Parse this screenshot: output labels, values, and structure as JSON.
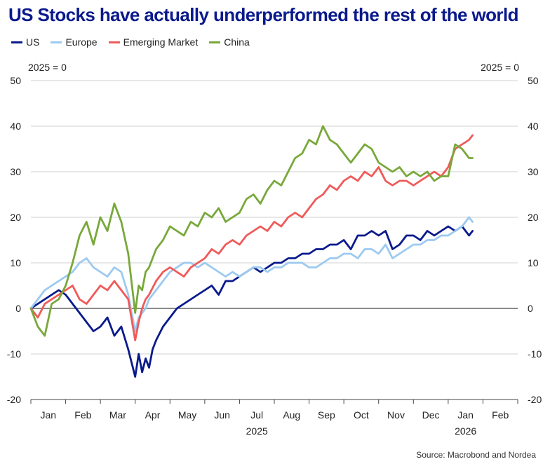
{
  "title": "US Stocks have actually underperformed the rest of the world",
  "source": "Source: Macrobond and Nordea",
  "chart_data": {
    "type": "line",
    "title": "US Stocks have actually underperformed the rest of the world",
    "left_axis_note": "2025 = 0",
    "right_axis_note": "2025 = 0",
    "ylim": [
      -20,
      50
    ],
    "yticks": [
      -20,
      -10,
      0,
      10,
      20,
      30,
      40,
      50
    ],
    "x_unit": "months since 2025-01-01",
    "xlim": [
      0,
      14
    ],
    "months": [
      "Jan",
      "Feb",
      "Mar",
      "Apr",
      "May",
      "Jun",
      "Jul",
      "Aug",
      "Sep",
      "Oct",
      "Nov",
      "Dec",
      "Jan",
      "Feb"
    ],
    "years": [
      {
        "label": "2025",
        "month_index": 6
      },
      {
        "label": "2026",
        "month_index": 12
      }
    ],
    "grid": "horizontal",
    "legend": "top-left",
    "series": [
      {
        "name": "US",
        "color": "#0a1a8c",
        "x": [
          0,
          0.2,
          0.4,
          0.6,
          0.8,
          1.0,
          1.2,
          1.4,
          1.6,
          1.8,
          2.0,
          2.2,
          2.4,
          2.6,
          2.8,
          3.0,
          3.1,
          3.2,
          3.3,
          3.4,
          3.5,
          3.6,
          3.8,
          4.0,
          4.2,
          4.4,
          4.6,
          4.8,
          5.0,
          5.2,
          5.4,
          5.6,
          5.8,
          6.0,
          6.2,
          6.4,
          6.6,
          6.8,
          7.0,
          7.2,
          7.4,
          7.6,
          7.8,
          8.0,
          8.2,
          8.4,
          8.6,
          8.8,
          9.0,
          9.2,
          9.4,
          9.6,
          9.8,
          10.0,
          10.2,
          10.4,
          10.6,
          10.8,
          11.0,
          11.2,
          11.4,
          11.6,
          11.8,
          12.0,
          12.2,
          12.4,
          12.6,
          12.7
        ],
        "y": [
          0,
          1,
          2,
          3,
          4,
          3,
          1,
          -1,
          -3,
          -5,
          -4,
          -2,
          -6,
          -4,
          -9,
          -15,
          -10,
          -14,
          -11,
          -13,
          -9,
          -7,
          -4,
          -2,
          0,
          1,
          2,
          3,
          4,
          5,
          3,
          6,
          6,
          7,
          8,
          9,
          8,
          9,
          10,
          10,
          11,
          11,
          12,
          12,
          13,
          13,
          14,
          14,
          15,
          13,
          16,
          16,
          17,
          16,
          17,
          13,
          14,
          16,
          16,
          15,
          17,
          16,
          17,
          18,
          17,
          18,
          16,
          17
        ]
      },
      {
        "name": "Europe",
        "color": "#9ccaf0",
        "x": [
          0,
          0.2,
          0.4,
          0.6,
          0.8,
          1.0,
          1.2,
          1.4,
          1.6,
          1.8,
          2.0,
          2.2,
          2.4,
          2.6,
          2.8,
          3.0,
          3.1,
          3.2,
          3.3,
          3.4,
          3.6,
          3.8,
          4.0,
          4.2,
          4.4,
          4.6,
          4.8,
          5.0,
          5.2,
          5.4,
          5.6,
          5.8,
          6.0,
          6.2,
          6.4,
          6.6,
          6.8,
          7.0,
          7.2,
          7.4,
          7.6,
          7.8,
          8.0,
          8.2,
          8.4,
          8.6,
          8.8,
          9.0,
          9.2,
          9.4,
          9.6,
          9.8,
          10.0,
          10.2,
          10.4,
          10.6,
          10.8,
          11.0,
          11.2,
          11.4,
          11.6,
          11.8,
          12.0,
          12.2,
          12.4,
          12.6,
          12.7
        ],
        "y": [
          0,
          2,
          4,
          5,
          6,
          7,
          8,
          10,
          11,
          9,
          8,
          7,
          9,
          8,
          3,
          -5,
          -2,
          -1,
          0,
          2,
          4,
          6,
          8,
          9,
          10,
          10,
          9,
          10,
          9,
          8,
          7,
          8,
          7,
          8,
          9,
          9,
          8,
          9,
          9,
          10,
          10,
          10,
          9,
          9,
          10,
          11,
          11,
          12,
          12,
          11,
          13,
          13,
          12,
          14,
          11,
          12,
          13,
          14,
          14,
          15,
          15,
          16,
          16,
          17,
          18,
          20,
          19
        ]
      },
      {
        "name": "Emerging Market",
        "color": "#f05a5a",
        "x": [
          0,
          0.2,
          0.4,
          0.6,
          0.8,
          1.0,
          1.2,
          1.4,
          1.6,
          1.8,
          2.0,
          2.2,
          2.4,
          2.6,
          2.8,
          3.0,
          3.1,
          3.2,
          3.3,
          3.4,
          3.6,
          3.8,
          4.0,
          4.2,
          4.4,
          4.6,
          4.8,
          5.0,
          5.2,
          5.4,
          5.6,
          5.8,
          6.0,
          6.2,
          6.4,
          6.6,
          6.8,
          7.0,
          7.2,
          7.4,
          7.6,
          7.8,
          8.0,
          8.2,
          8.4,
          8.6,
          8.8,
          9.0,
          9.2,
          9.4,
          9.6,
          9.8,
          10.0,
          10.2,
          10.4,
          10.6,
          10.8,
          11.0,
          11.2,
          11.4,
          11.6,
          11.8,
          12.0,
          12.2,
          12.4,
          12.6,
          12.7
        ],
        "y": [
          0,
          -2,
          1,
          2,
          3,
          4,
          5,
          2,
          1,
          3,
          5,
          4,
          6,
          4,
          2,
          -7,
          -3,
          0,
          2,
          3,
          6,
          8,
          9,
          8,
          7,
          9,
          10,
          11,
          13,
          12,
          14,
          15,
          14,
          16,
          17,
          18,
          17,
          19,
          18,
          20,
          21,
          20,
          22,
          24,
          25,
          27,
          26,
          28,
          29,
          28,
          30,
          29,
          31,
          28,
          27,
          28,
          28,
          27,
          28,
          29,
          30,
          29,
          31,
          35,
          36,
          37,
          38
        ]
      },
      {
        "name": "China",
        "color": "#78a83a",
        "x": [
          0,
          0.2,
          0.4,
          0.6,
          0.8,
          1.0,
          1.2,
          1.4,
          1.6,
          1.8,
          2.0,
          2.2,
          2.4,
          2.6,
          2.8,
          3.0,
          3.1,
          3.2,
          3.3,
          3.4,
          3.6,
          3.8,
          4.0,
          4.2,
          4.4,
          4.6,
          4.8,
          5.0,
          5.2,
          5.4,
          5.6,
          5.8,
          6.0,
          6.2,
          6.4,
          6.6,
          6.8,
          7.0,
          7.2,
          7.4,
          7.6,
          7.8,
          8.0,
          8.2,
          8.4,
          8.6,
          8.8,
          9.0,
          9.2,
          9.4,
          9.6,
          9.8,
          10.0,
          10.2,
          10.4,
          10.6,
          10.8,
          11.0,
          11.2,
          11.4,
          11.6,
          11.8,
          12.0,
          12.2,
          12.4,
          12.6,
          12.7
        ],
        "y": [
          0,
          -4,
          -6,
          1,
          2,
          5,
          10,
          16,
          19,
          14,
          20,
          17,
          23,
          19,
          12,
          -1,
          5,
          4,
          8,
          9,
          13,
          15,
          18,
          17,
          16,
          19,
          18,
          21,
          20,
          22,
          19,
          20,
          21,
          24,
          25,
          23,
          26,
          28,
          27,
          30,
          33,
          34,
          37,
          36,
          40,
          37,
          36,
          34,
          32,
          34,
          36,
          35,
          32,
          31,
          30,
          31,
          29,
          30,
          29,
          30,
          28,
          29,
          29,
          36,
          35,
          33,
          33
        ]
      }
    ]
  }
}
